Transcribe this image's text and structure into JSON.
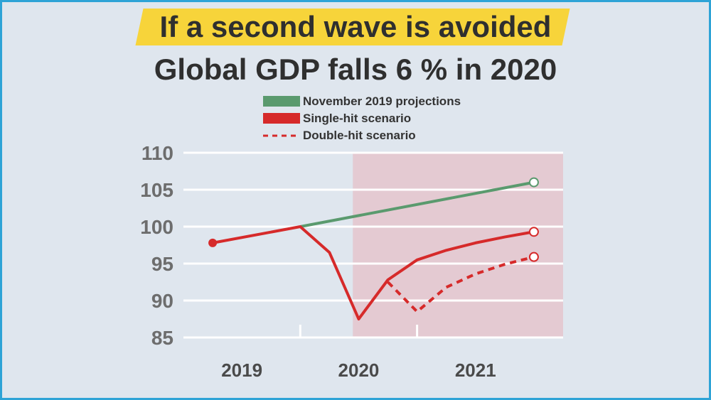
{
  "title": {
    "line1": "If a second wave is avoided",
    "line2": "Global GDP falls 6 % in 2020"
  },
  "colors": {
    "background": "#dfe6ee",
    "highlight": "#f7d43a",
    "projection": "#5a9a6e",
    "single_hit": "#d62a2a",
    "double_hit": "#d62a2a",
    "shaded_region": "#e4cad2"
  },
  "chart_data": {
    "type": "line",
    "title": "Global GDP falls 6 % in 2020",
    "xlabel": "",
    "ylabel": "",
    "ylim": [
      85,
      110
    ],
    "yticks": [
      "110",
      "105",
      "100",
      "95",
      "90",
      "85"
    ],
    "ytick_values": [
      110,
      105,
      100,
      95,
      90,
      85
    ],
    "xlim": [
      2018.5,
      2021.75
    ],
    "xticks": [
      "2019",
      "2020",
      "2021"
    ],
    "shaded_from": 2019.95,
    "series": [
      {
        "name": "November 2019 projections",
        "style": "solid",
        "color": "#5a9a6e",
        "x": [
          2019.5,
          2021.5
        ],
        "values": [
          100.0,
          106.0
        ],
        "end_marker": true
      },
      {
        "name": "Single-hit scenario",
        "style": "solid",
        "color": "#d62a2a",
        "x": [
          2018.75,
          2019.5,
          2019.75,
          2020.0,
          2020.25,
          2020.5,
          2020.75,
          2021.0,
          2021.25,
          2021.5
        ],
        "values": [
          97.8,
          100.0,
          96.5,
          87.5,
          92.8,
          95.5,
          96.8,
          97.8,
          98.6,
          99.3
        ],
        "start_marker": true,
        "end_marker": true
      },
      {
        "name": "Double-hit scenario",
        "style": "dashed",
        "color": "#d62a2a",
        "x": [
          2020.25,
          2020.5,
          2020.75,
          2021.0,
          2021.25,
          2021.5
        ],
        "values": [
          92.5,
          88.5,
          91.8,
          93.6,
          94.9,
          95.9
        ],
        "end_marker": true
      }
    ]
  }
}
